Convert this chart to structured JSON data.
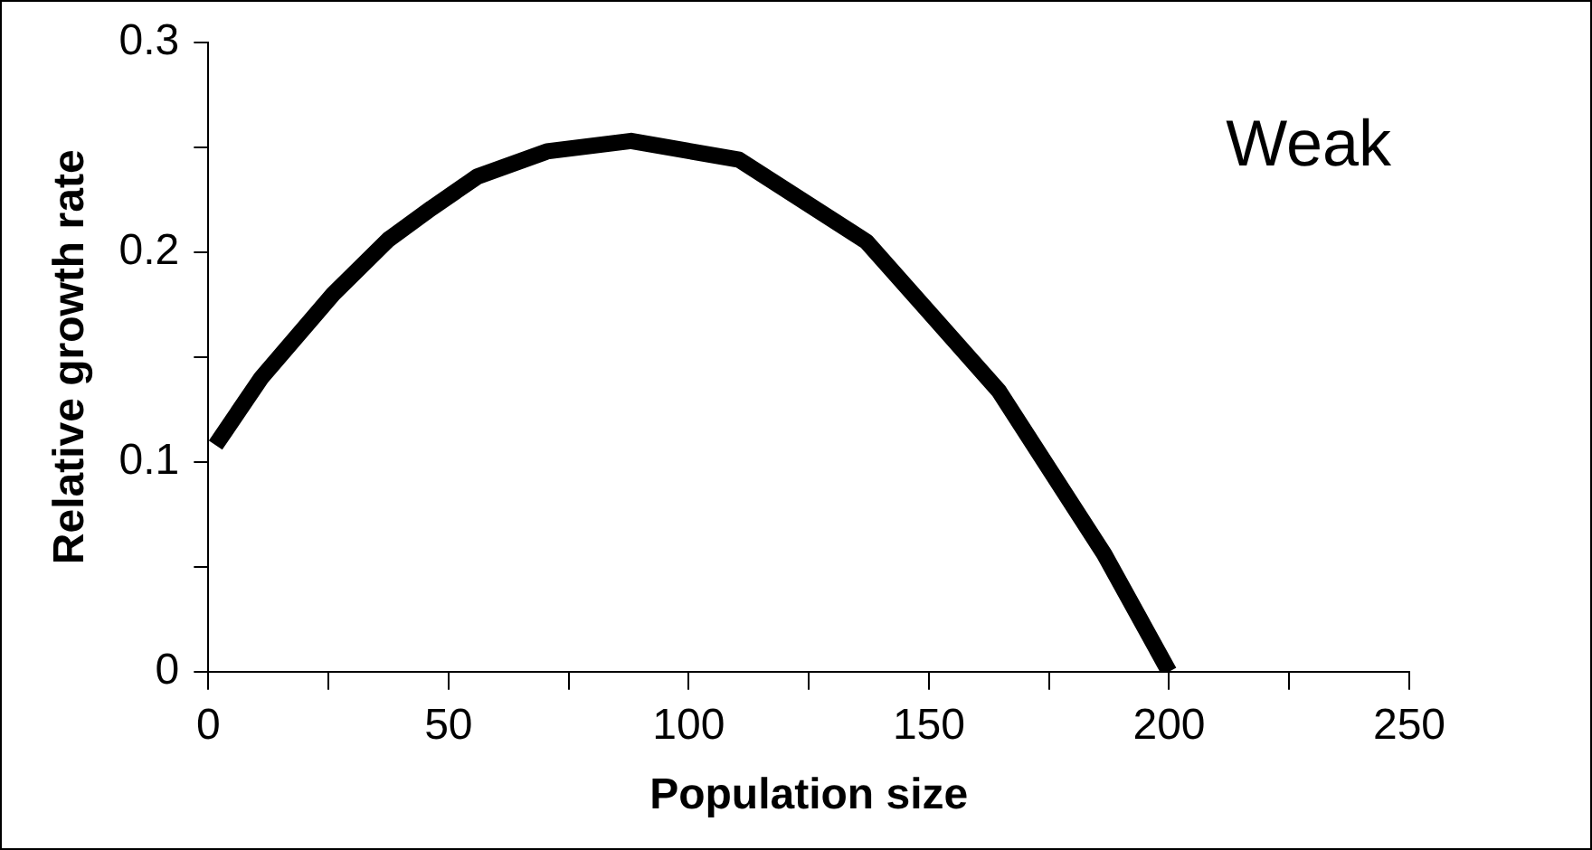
{
  "chart_data": {
    "type": "line",
    "xlabel": "Population size",
    "ylabel": "Relative growth rate",
    "annotations": [
      "Weak"
    ],
    "x": [
      1.5,
      11,
      26,
      37.5,
      46.5,
      56,
      70.5,
      88,
      110.5,
      137,
      164.5,
      186.5,
      200
    ],
    "series": [
      {
        "color": "#000000",
        "values": [
          0.108,
          0.14,
          0.18,
          0.206,
          0.221,
          0.236,
          0.248,
          0.253,
          0.244,
          0.205,
          0.134,
          0.056,
          0
        ]
      }
    ],
    "xlim": [
      0,
      250
    ],
    "xticks": [
      0,
      {
        "value": 25,
        "label": null
      },
      50,
      {
        "value": 75,
        "label": null
      },
      100,
      {
        "value": 125,
        "label": null
      },
      150,
      {
        "value": 175,
        "label": null
      },
      200,
      {
        "value": 225,
        "label": null
      },
      250
    ],
    "ylim": [
      0,
      0.3
    ],
    "yticks": [
      0,
      {
        "value": 0.05,
        "label": null
      },
      0.1,
      {
        "value": 0.15,
        "label": null
      },
      0.2,
      {
        "value": 0.25,
        "label": null
      },
      0.3
    ],
    "grid": false,
    "legend": false,
    "marker": "none",
    "line_style": "solid"
  }
}
